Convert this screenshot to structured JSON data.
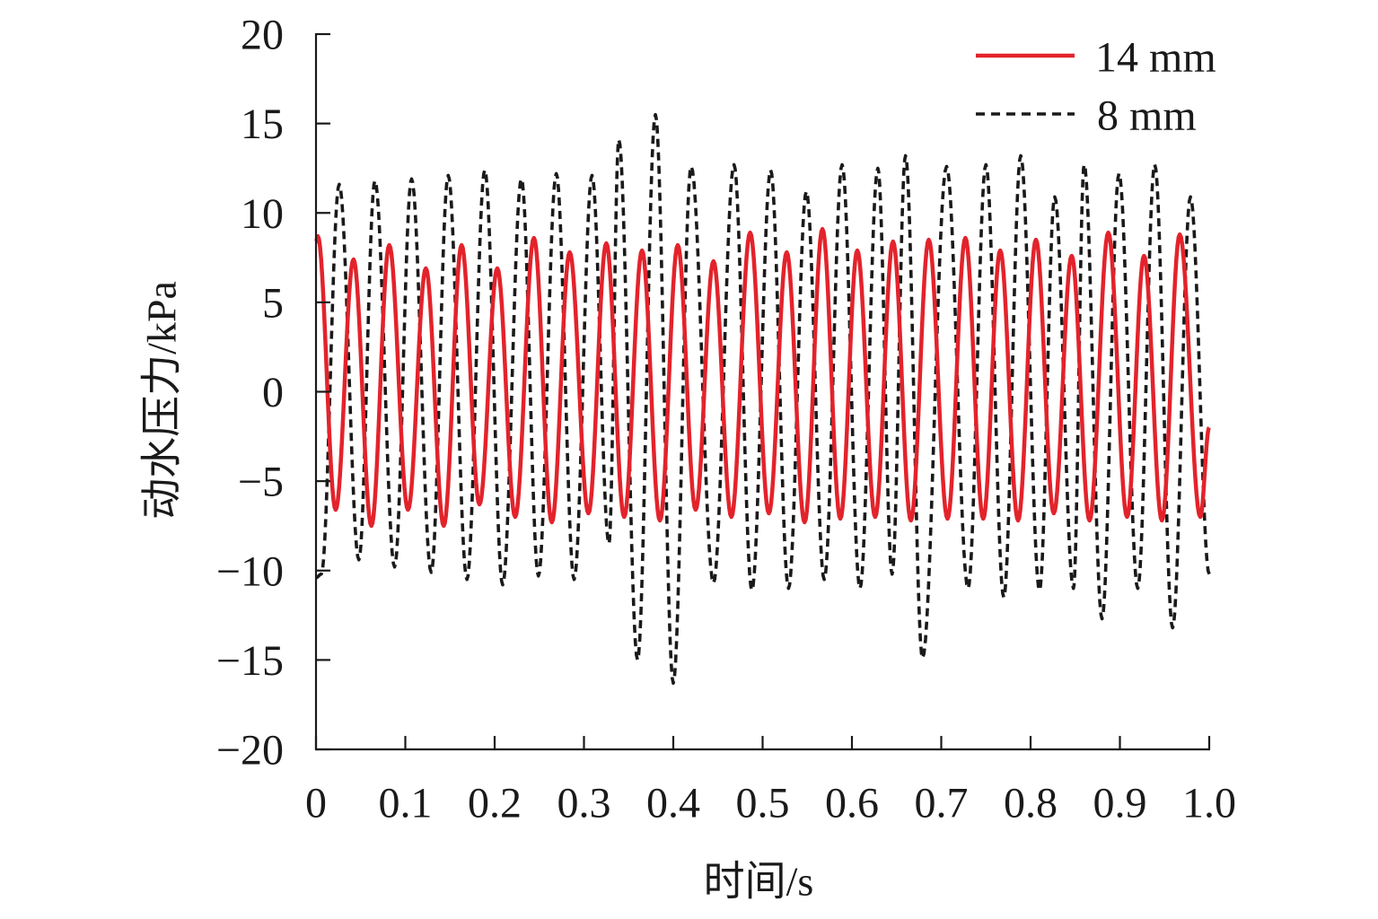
{
  "chart_data": {
    "type": "line",
    "xlabel": "时间/s",
    "ylabel": "动水压力/kPa",
    "xlim": [
      0,
      1.0
    ],
    "ylim": [
      -20,
      20
    ],
    "xticks": [
      "0",
      "0.1",
      "0.2",
      "0.3",
      "0.4",
      "0.5",
      "0.6",
      "0.7",
      "0.8",
      "0.9",
      "1.0"
    ],
    "yticks": [
      "20",
      "15",
      "10",
      "5",
      "0",
      "−5",
      "−10",
      "−15",
      "−20"
    ],
    "grid": false,
    "legend": "top-right",
    "series": [
      {
        "name": "14 mm",
        "color": "#e3232b",
        "dashed": false,
        "x": [
          0,
          0.002,
          0.022,
          0.042,
          0.062,
          0.082,
          0.103,
          0.123,
          0.143,
          0.163,
          0.183,
          0.203,
          0.223,
          0.244,
          0.264,
          0.284,
          0.305,
          0.325,
          0.345,
          0.365,
          0.385,
          0.405,
          0.425,
          0.445,
          0.465,
          0.486,
          0.507,
          0.527,
          0.547,
          0.567,
          0.587,
          0.606,
          0.626,
          0.646,
          0.666,
          0.686,
          0.707,
          0.727,
          0.747,
          0.766,
          0.786,
          0.806,
          0.826,
          0.846,
          0.866,
          0.887,
          0.908,
          0.927,
          0.947,
          0.967,
          0.99,
          1.0
        ],
        "y": [
          8.4,
          8.7,
          -6.6,
          7.4,
          -7.5,
          8.2,
          -6.6,
          6.9,
          -7.5,
          8.2,
          -6.3,
          6.9,
          -7.0,
          8.6,
          -7.3,
          7.8,
          -6.8,
          8.3,
          -7.0,
          7.9,
          -7.2,
          8.2,
          -6.6,
          7.3,
          -7.0,
          8.9,
          -6.8,
          7.8,
          -7.3,
          9.1,
          -7.1,
          7.9,
          -7.0,
          8.4,
          -7.2,
          8.5,
          -7.1,
          8.6,
          -7.1,
          7.9,
          -7.2,
          8.5,
          -6.8,
          7.6,
          -7.2,
          8.9,
          -7.0,
          7.6,
          -7.2,
          8.8,
          -7.0,
          -2.0
        ]
      },
      {
        "name": "8 mm",
        "color": "#1a1a1a",
        "dashed": true,
        "x": [
          0,
          0.006,
          0.026,
          0.048,
          0.066,
          0.088,
          0.107,
          0.129,
          0.148,
          0.169,
          0.189,
          0.209,
          0.23,
          0.249,
          0.269,
          0.289,
          0.309,
          0.328,
          0.339,
          0.36,
          0.38,
          0.4,
          0.42,
          0.445,
          0.468,
          0.488,
          0.509,
          0.529,
          0.549,
          0.569,
          0.589,
          0.609,
          0.629,
          0.645,
          0.66,
          0.679,
          0.706,
          0.73,
          0.75,
          0.77,
          0.789,
          0.81,
          0.827,
          0.848,
          0.86,
          0.88,
          0.899,
          0.92,
          0.939,
          0.959,
          0.979,
          1.0
        ],
        "y": [
          -10.4,
          -10.2,
          11.6,
          -9.4,
          11.8,
          -9.8,
          11.9,
          -10.1,
          12.1,
          -10.5,
          12.4,
          -10.8,
          11.9,
          -10.3,
          12.2,
          -10.5,
          12.1,
          -8.5,
          14.1,
          -15.0,
          15.5,
          -16.3,
          12.6,
          -10.7,
          12.7,
          -11.1,
          12.4,
          -11.0,
          11.2,
          -10.5,
          12.7,
          -11.0,
          12.5,
          -10.2,
          13.2,
          -14.9,
          12.6,
          -11.0,
          12.7,
          -11.5,
          13.2,
          -11.1,
          10.9,
          -11.0,
          12.7,
          -12.7,
          12.2,
          -11.0,
          12.7,
          -13.2,
          10.9,
          -10.2
        ]
      }
    ]
  }
}
